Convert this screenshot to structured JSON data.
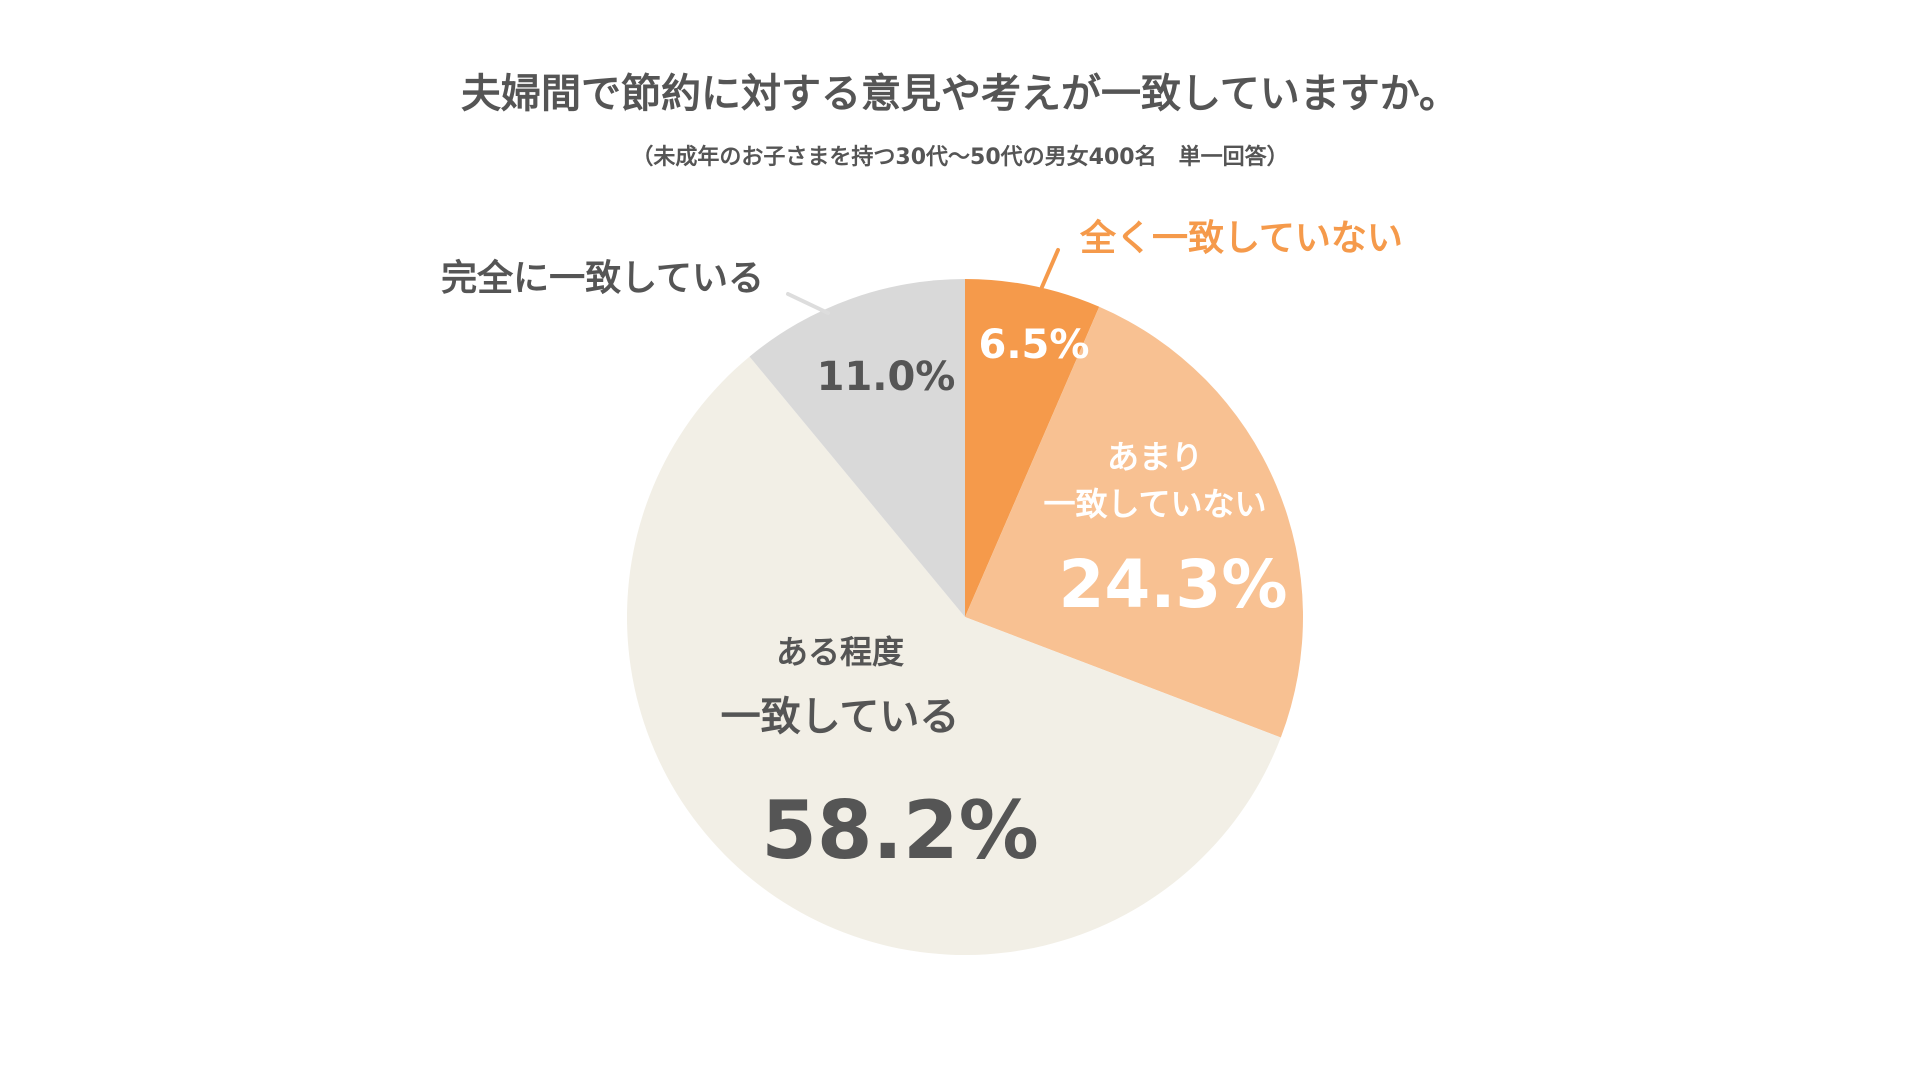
{
  "chart_data": {
    "type": "pie",
    "title": "夫婦間で節約に対する意見や考えが一致していますか。",
    "subtitle": "（未成年のお子さまを持つ30代～50代の男女400名　単一回答）",
    "start_angle": "12 o'clock",
    "direction": "clockwise",
    "slices": [
      {
        "label": "全く一致していない",
        "value": 6.5,
        "value_label": "6.5%",
        "color": "#F59A4B",
        "label_color": "#F59A4B",
        "value_color": "#FFFFFF",
        "label_position": "outside"
      },
      {
        "label": "あまり一致していない",
        "label_lines": [
          "あまり",
          "一致していない"
        ],
        "value": 24.3,
        "value_label": "24.3%",
        "color": "#F8C192",
        "label_color": "#FFFFFF",
        "value_color": "#FFFFFF",
        "label_position": "inside"
      },
      {
        "label": "ある程度一致している",
        "label_lines": [
          "ある程度",
          "一致している"
        ],
        "value": 58.2,
        "value_label": "58.2%",
        "color": "#F2EFE6",
        "label_color": "#555555",
        "value_color": "#555555",
        "label_position": "inside"
      },
      {
        "label": "完全に一致している",
        "value": 11.0,
        "value_label": "11.0%",
        "color": "#D9D9D9",
        "label_color": "#555555",
        "value_color": "#555555",
        "label_position": "outside"
      }
    ]
  }
}
